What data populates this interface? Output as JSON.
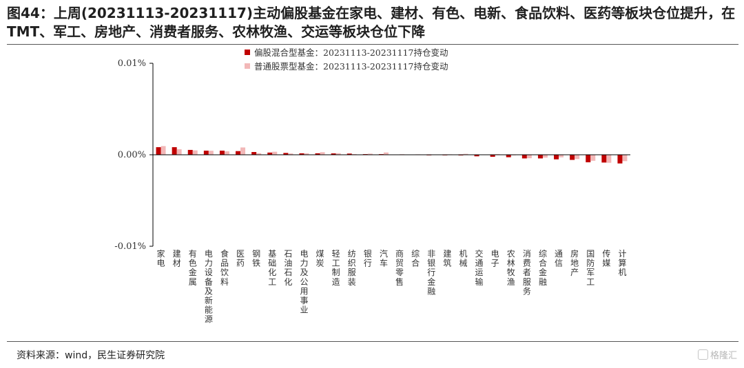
{
  "title": "图44：上周(20231113-20231117)主动偏股基金在家电、建材、有色、电新、食品饮料、医药等板块仓位提升，在 TMT、军工、房地产、消费者服务、农林牧渔、交运等板块仓位下降",
  "source": "资料来源：wind，民生证券研究院",
  "watermark": "格隆汇",
  "colors": {
    "series1": "#c00000",
    "series2": "#f2b8b8",
    "axis": "#000000"
  },
  "chart_data": {
    "type": "bar",
    "ylim": [
      -0.0001,
      0.0001
    ],
    "yticks": [
      0.0001,
      0,
      -0.0001
    ],
    "ytick_labels": [
      "0.01%",
      "0.00%",
      "-0.01%"
    ],
    "categories": [
      "家电",
      "建材",
      "有色金属",
      "电力设备及新能源",
      "食品饮料",
      "医药",
      "钢铁",
      "基础化工",
      "石油石化",
      "电力及公用事业",
      "煤炭",
      "轻工制造",
      "纺织服装",
      "银行",
      "汽车",
      "商贸零售",
      "综合",
      "非银行金融",
      "建筑",
      "机械",
      "交通运输",
      "电子",
      "农林牧渔",
      "消费者服务",
      "综合金融",
      "通信",
      "房地产",
      "国防军工",
      "传媒",
      "计算机"
    ],
    "legend_position": "top-center",
    "series": [
      {
        "name": "偏股混合型基金：20231113-20231117持仓变动",
        "values": [
          8.3e-06,
          8.3e-06,
          5.3e-06,
          4.5e-06,
          4.5e-06,
          4e-06,
          3e-06,
          2.4e-06,
          2e-06,
          1.6e-06,
          1.6e-06,
          1.5e-06,
          1.3e-06,
          7e-07,
          7e-07,
          2e-07,
          -3e-07,
          -6e-07,
          -6e-07,
          -7e-07,
          -1.7e-06,
          -2.2e-06,
          -2.7e-06,
          -4e-06,
          -4e-06,
          -5e-06,
          -5.6e-06,
          -8.2e-06,
          -8.5e-06,
          -9.5e-06
        ]
      },
      {
        "name": "普通股票型基金：20231113-20231117持仓变动",
        "values": [
          9.5e-06,
          6e-06,
          4.8e-06,
          4.4e-06,
          3.8e-06,
          8e-06,
          1.7e-06,
          3.3e-06,
          1.4e-06,
          1.6e-06,
          2.8e-06,
          1.7e-06,
          7e-07,
          1.2e-06,
          2.5e-06,
          6e-07,
          5e-07,
          0,
          5e-07,
          1e-06,
          0,
          7e-07,
          -6e-07,
          -3.8e-06,
          -3.1e-06,
          -2.8e-06,
          -4.7e-06,
          -6.6e-06,
          -8.8e-06,
          -7e-06
        ]
      }
    ]
  }
}
